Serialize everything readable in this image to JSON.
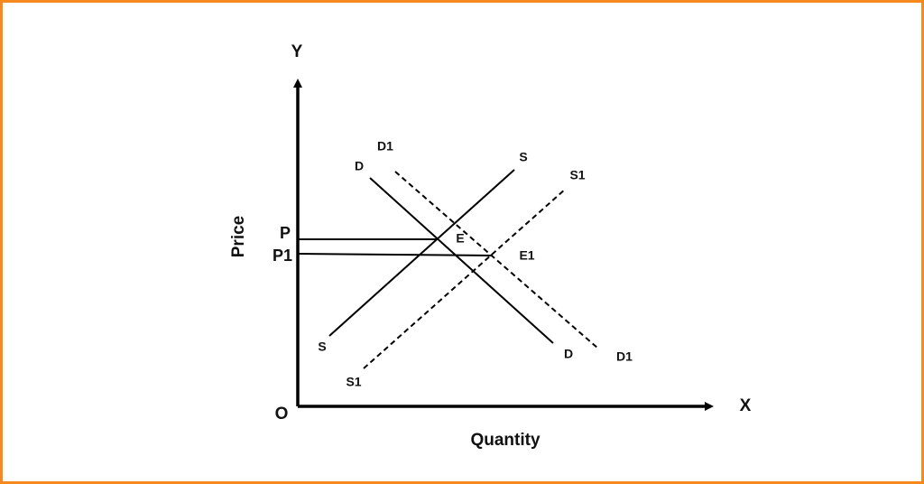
{
  "axes": {
    "y": "Y",
    "x": "X",
    "origin": "O",
    "y_title": "Price",
    "x_title": "Quantity"
  },
  "price_levels": [
    "P",
    "P1"
  ],
  "equilibria": [
    "E",
    "E1"
  ],
  "curves": {
    "demand": {
      "top": "D",
      "bottom": "D"
    },
    "demand_new": {
      "top": "D1",
      "bottom": "D1"
    },
    "supply": {
      "top": "S",
      "bottom": "S"
    },
    "supply_new": {
      "top": "S1",
      "bottom": "S1"
    }
  }
}
